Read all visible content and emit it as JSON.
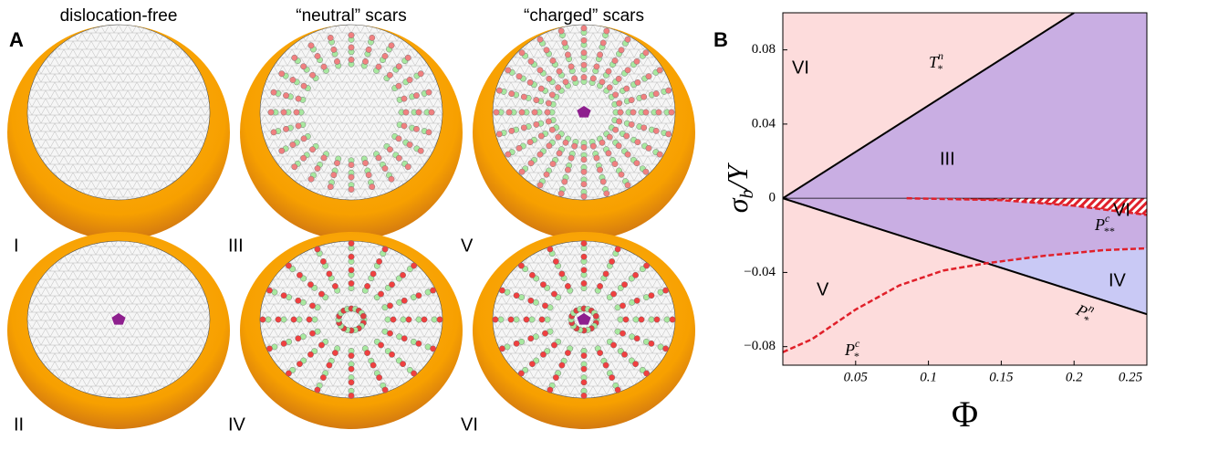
{
  "panel_a": {
    "label": "A",
    "headers": [
      "dislocation-free",
      "“neutral” scars",
      "“charged” scars"
    ],
    "cells": [
      "I",
      "III",
      "V",
      "II",
      "IV",
      "VI"
    ]
  },
  "chart_data": {
    "type": "phase",
    "label": "B",
    "x_label": "Φ",
    "y_label": {
      "base": "σ",
      "sub": "b",
      "rest": "/Y"
    },
    "xlim": [
      0,
      0.25
    ],
    "ylim": [
      -0.09,
      0.1
    ],
    "xticks": [
      0.05,
      0.1,
      0.15,
      0.2,
      0.25
    ],
    "yticks": [
      -0.08,
      -0.04,
      0,
      0.04,
      0.08
    ],
    "series": [
      {
        "name": {
          "base": "T",
          "sub": "*",
          "sup": "n"
        },
        "color": "#000000",
        "dashed": false,
        "x": [
          0,
          0.2
        ],
        "values": [
          0,
          0.1
        ]
      },
      {
        "name": {
          "base": "P",
          "sub": "*",
          "sup": "n"
        },
        "color": "#000000",
        "dashed": false,
        "x": [
          0,
          0.25
        ],
        "values": [
          0,
          -0.0625
        ]
      },
      {
        "name": {
          "base": "P",
          "sub": "*",
          "sup": "c"
        },
        "color": "#e0202a",
        "dashed": true,
        "x": [
          0,
          0.02,
          0.05,
          0.08,
          0.11,
          0.14,
          0.18,
          0.22,
          0.25
        ],
        "values": [
          -0.083,
          -0.076,
          -0.06,
          -0.047,
          -0.039,
          -0.035,
          -0.031,
          -0.028,
          -0.027
        ]
      },
      {
        "name": {
          "base": "P",
          "sub": "**",
          "sup": "c"
        },
        "color": "#e0202a",
        "dashed": true,
        "x": [
          0.085,
          0.15,
          0.2,
          0.25
        ],
        "values": [
          0,
          -0.001,
          -0.004,
          -0.009
        ]
      }
    ],
    "regions": [
      "VI",
      "III",
      "VI",
      "V",
      "IV"
    ],
    "colors": {
      "background": "#fddcdc",
      "dislocation": "#c9aee3",
      "neutral": "#c9c9f5",
      "hatch": "#e0202a"
    }
  }
}
